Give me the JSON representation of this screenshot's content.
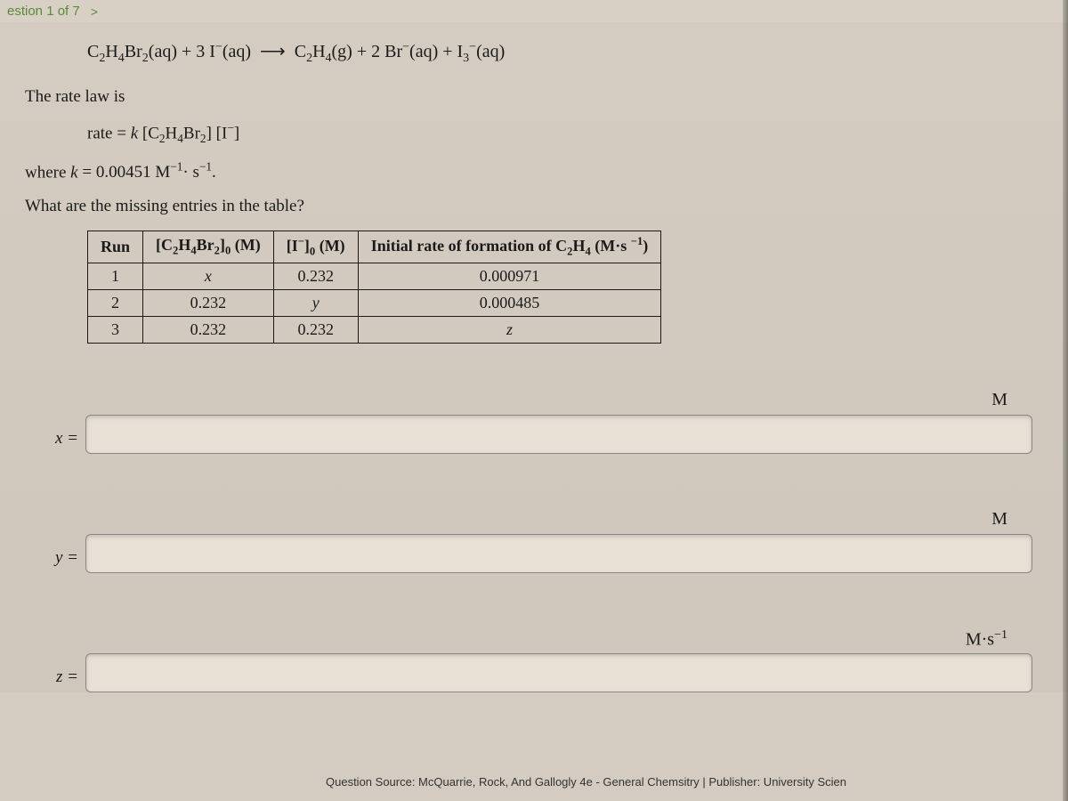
{
  "topbar": {
    "progress": "estion 1 of 7",
    "chevron": ">"
  },
  "equation": "C₂H₄Br₂(aq) + 3 I⁻(aq) ⟶ C₂H₄(g) + 2 Br⁻(aq) + I₃⁻(aq)",
  "rate_law_intro": "The rate law is",
  "rate_law": "rate = k [C₂H₄Br₂] [I⁻]",
  "where_line_prefix": "where ",
  "where_k": "k",
  "where_value": " = 0.00451 M⁻¹· s⁻¹.",
  "question": "What are the missing entries in the table?",
  "table": {
    "headers": {
      "run": "Run",
      "col1_html": "[C₂H₄Br₂]₀ (M)",
      "col2_html": "[I⁻]₀ (M)",
      "col3_html": "Initial rate of formation of C₂H₄ (M·s ⁻¹)"
    },
    "rows": [
      {
        "run": "1",
        "c1": "x",
        "c2": "0.232",
        "c3": "0.000971"
      },
      {
        "run": "2",
        "c1": "0.232",
        "c2": "y",
        "c3": "0.000485"
      },
      {
        "run": "3",
        "c1": "0.232",
        "c2": "0.232",
        "c3": "z"
      }
    ]
  },
  "answers": {
    "x_label": "x =",
    "x_unit": "M",
    "y_label": "y =",
    "y_unit": "M",
    "z_label": "z =",
    "z_unit": "M·s⁻¹"
  },
  "source": "Question Source: McQuarrie, Rock, And Gallogly 4e - General Chemsitry  |  Publisher: University Scien"
}
